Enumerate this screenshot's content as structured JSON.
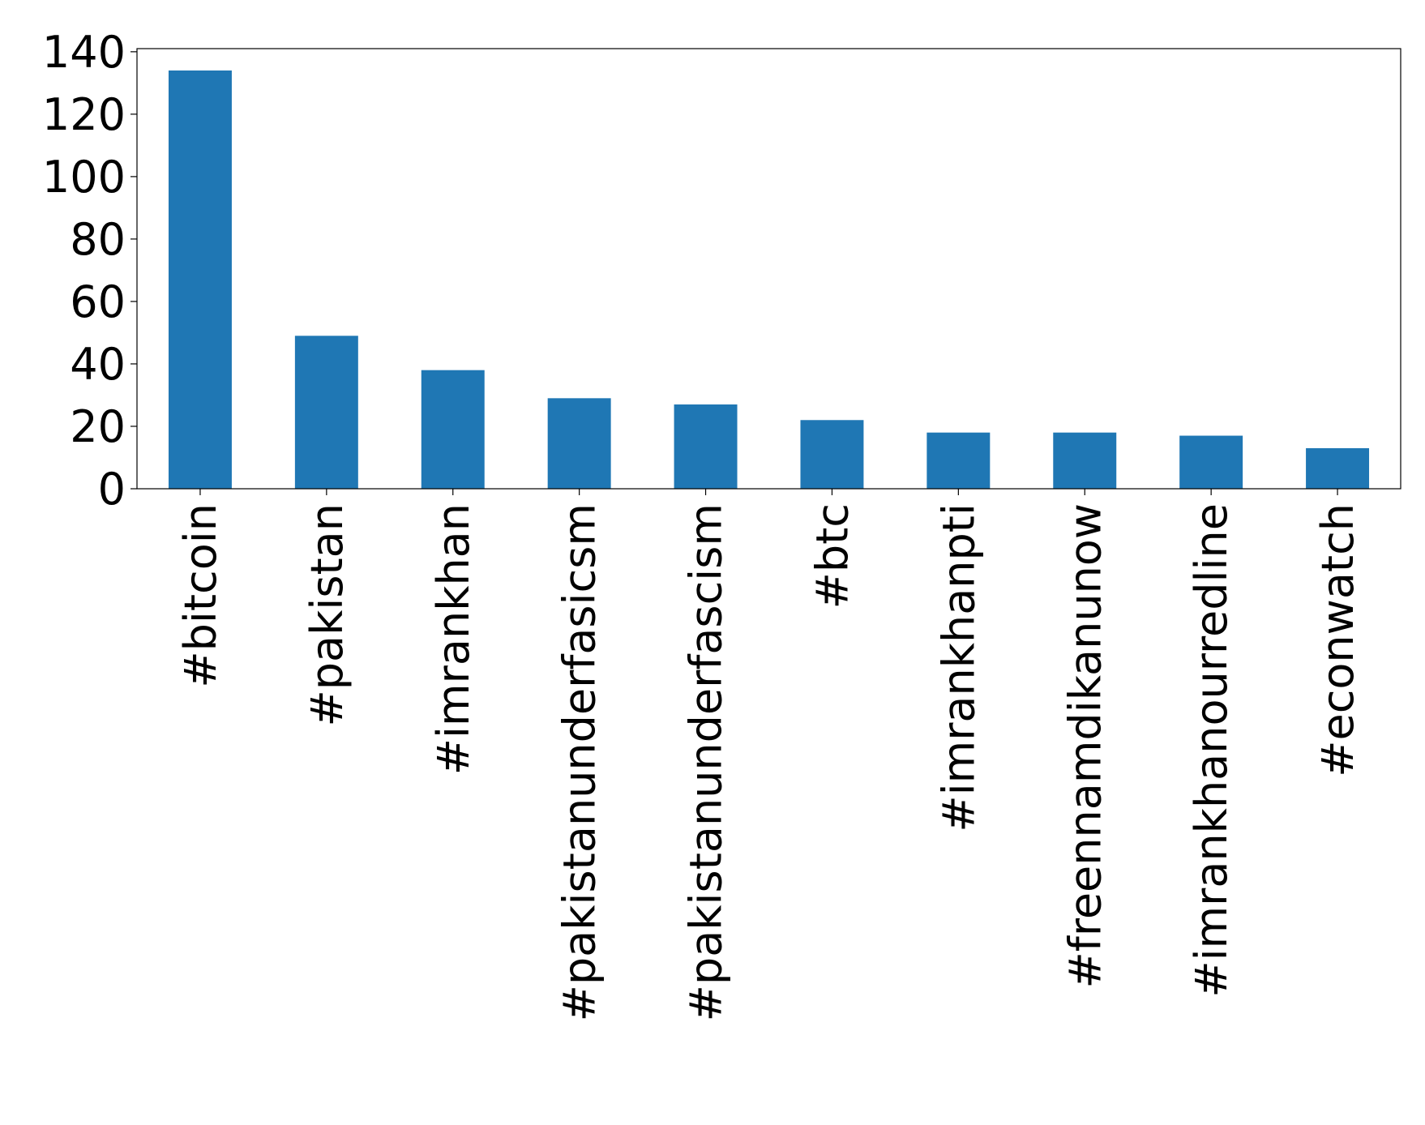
{
  "chart_data": {
    "type": "bar",
    "categories": [
      "#bitcoin",
      "#pakistan",
      "#imrankhan",
      "#pakistanunderfasicsm",
      "#pakistanunderfascism",
      "#btc",
      "#imrankhanpti",
      "#freennamdikanunow",
      "#imrankhanourredline",
      "#econwatch"
    ],
    "values": [
      134,
      49,
      38,
      29,
      27,
      22,
      18,
      18,
      17,
      13
    ],
    "color": "#1f77b4",
    "ylim": [
      0,
      141
    ],
    "yticks": [
      0,
      20,
      40,
      60,
      80,
      100,
      120,
      140
    ],
    "grid": false
  }
}
